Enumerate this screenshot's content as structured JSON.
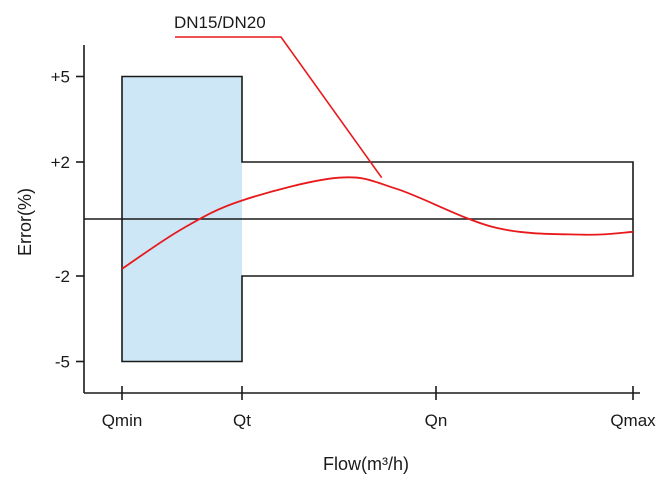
{
  "chart_data": {
    "type": "line",
    "title": "",
    "xlabel": "Flow(m³/h)",
    "ylabel": "Error(%)",
    "x_categories": [
      "Qmin",
      "Qt",
      "Qn",
      "Qmax"
    ],
    "y_ticks": [
      {
        "value": 5,
        "label": "+5"
      },
      {
        "value": 2,
        "label": "+2"
      },
      {
        "value": -2,
        "label": "-2"
      },
      {
        "value": -5,
        "label": "-5"
      }
    ],
    "ylim": [
      -6.0,
      6.0
    ],
    "grid": false,
    "legend": "none",
    "tolerance_limits": [
      {
        "from": "Qmin",
        "to": "Qt",
        "upper": 5,
        "lower": -5,
        "shaded": true
      },
      {
        "from": "Qt",
        "to": "Qmax",
        "upper": 2,
        "lower": -2,
        "shaded": false
      }
    ],
    "zero_line": 0,
    "series": [
      {
        "name": "DN15/DN20",
        "points": [
          {
            "x": 0.0,
            "y": -1.75
          },
          {
            "x": 0.5,
            "y": -0.35
          },
          {
            "x": 1.0,
            "y": 0.65
          },
          {
            "x": 1.5,
            "y": 1.45
          },
          {
            "x": 1.8,
            "y": 1.05
          },
          {
            "x": 2.3,
            "y": -0.3
          },
          {
            "x": 2.75,
            "y": -0.55
          },
          {
            "x": 3.0,
            "y": -0.45
          }
        ]
      }
    ],
    "colors": {
      "series": "#e8191c",
      "shade": "#cde7f7",
      "axis": "#1a1a1a"
    }
  }
}
